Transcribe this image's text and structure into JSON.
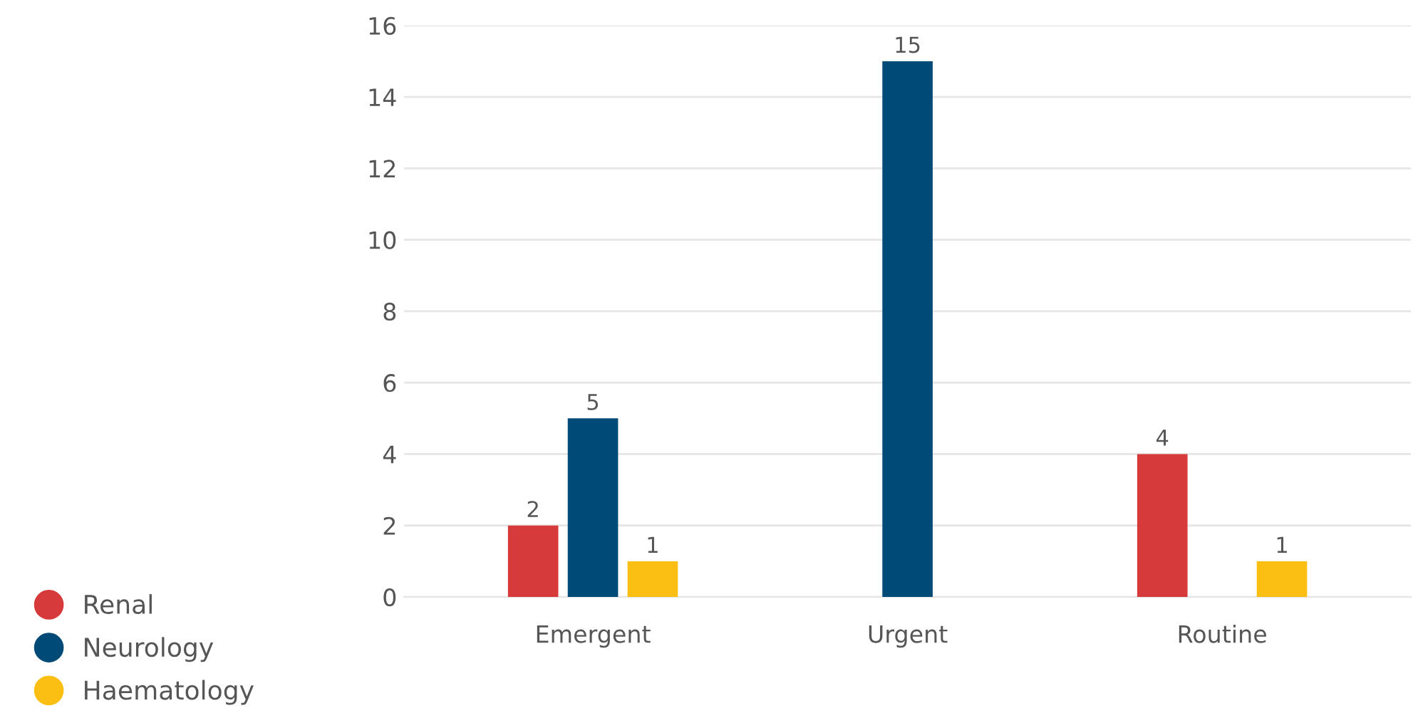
{
  "chart_data": {
    "type": "bar",
    "categories": [
      "Emergent",
      "Urgent",
      "Routine"
    ],
    "series": [
      {
        "name": "Renal",
        "color": "#d63a3a",
        "values": [
          2,
          null,
          4
        ]
      },
      {
        "name": "Neurology",
        "color": "#004a77",
        "values": [
          5,
          15,
          null
        ]
      },
      {
        "name": "Haematology",
        "color": "#fbbf14",
        "values": [
          1,
          null,
          1
        ]
      }
    ],
    "ylim": [
      0,
      16
    ],
    "yticks": [
      0,
      2,
      4,
      6,
      8,
      10,
      12,
      14,
      16
    ],
    "grid": "y",
    "legend": "left",
    "data_labels": true,
    "marker": "circle"
  }
}
